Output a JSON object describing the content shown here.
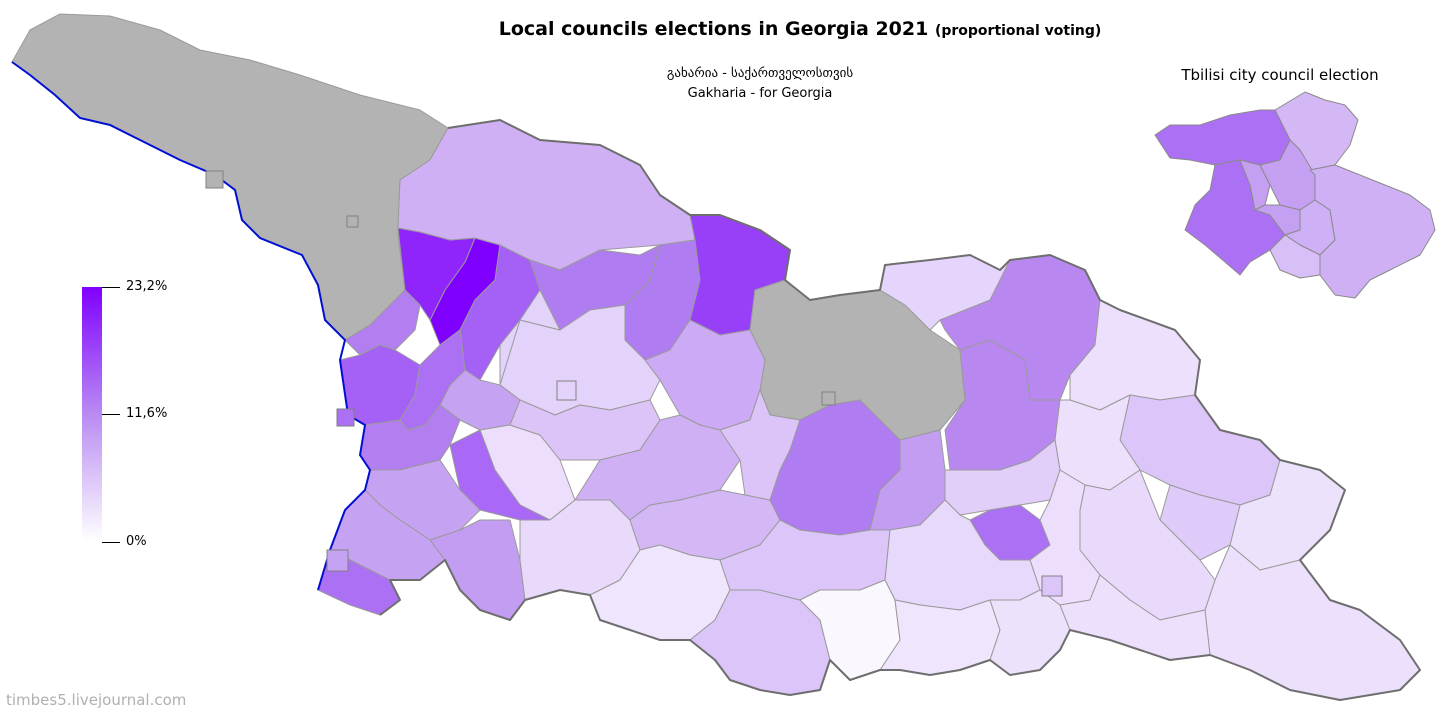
{
  "title": {
    "main": "Local councils elections in Georgia 2021",
    "sub": "(proportional voting)"
  },
  "party": {
    "name_ka": "გახარია - საქართველოსთვის",
    "name_en": "Gakharia - for Georgia"
  },
  "tbilisi": {
    "title": "Tbilisi city council election"
  },
  "legend": {
    "max_label": "23,2%",
    "mid_label": "11,6%",
    "min_label": "0%",
    "max_value": 23.2,
    "colors": {
      "high": "#8000ff",
      "mid": "#b98bf2",
      "low": "#ffffff",
      "no_data": "#b3b3b3",
      "border": "#808080",
      "coast": "#0010d0"
    }
  },
  "watermark": "timbes5.livejournal.com"
}
